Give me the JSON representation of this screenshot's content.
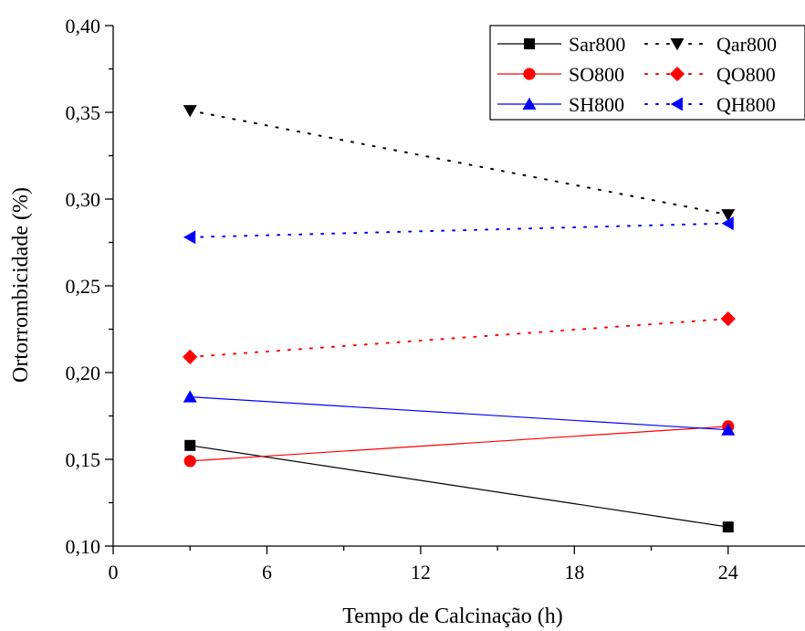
{
  "chart_data": {
    "type": "line",
    "title": "",
    "xlabel": "Tempo de Calcinação (h)",
    "ylabel": "Ortorrombicidade (%)",
    "xlim": [
      0,
      27
    ],
    "ylim": [
      0.1,
      0.4
    ],
    "xticks": [
      0,
      6,
      12,
      18,
      24
    ],
    "xtick_labels": [
      "0",
      "6",
      "12",
      "18",
      "24"
    ],
    "yticks": [
      0.1,
      0.15,
      0.2,
      0.25,
      0.3,
      0.35,
      0.4
    ],
    "ytick_labels": [
      "0,10",
      "0,15",
      "0,20",
      "0,25",
      "0,30",
      "0,35",
      "0,40"
    ],
    "grid": false,
    "legend_position": "top-right",
    "x": [
      3,
      24
    ],
    "series": [
      {
        "name": "Sar800",
        "values": [
          0.158,
          0.111
        ],
        "color": "#000000",
        "line": "solid",
        "marker": "square"
      },
      {
        "name": "SO800",
        "values": [
          0.149,
          0.169
        ],
        "color": "#ff0000",
        "line": "solid",
        "marker": "circle"
      },
      {
        "name": "SH800",
        "values": [
          0.186,
          0.167
        ],
        "color": "#0000ff",
        "line": "solid",
        "marker": "triangle-up"
      },
      {
        "name": "Qar800",
        "values": [
          0.351,
          0.291
        ],
        "color": "#000000",
        "line": "dotted",
        "marker": "triangle-down"
      },
      {
        "name": "QO800",
        "values": [
          0.209,
          0.231
        ],
        "color": "#ff0000",
        "line": "dotted",
        "marker": "diamond"
      },
      {
        "name": "QH800",
        "values": [
          0.278,
          0.286
        ],
        "color": "#0000ff",
        "line": "dotted",
        "marker": "triangle-left"
      }
    ]
  }
}
